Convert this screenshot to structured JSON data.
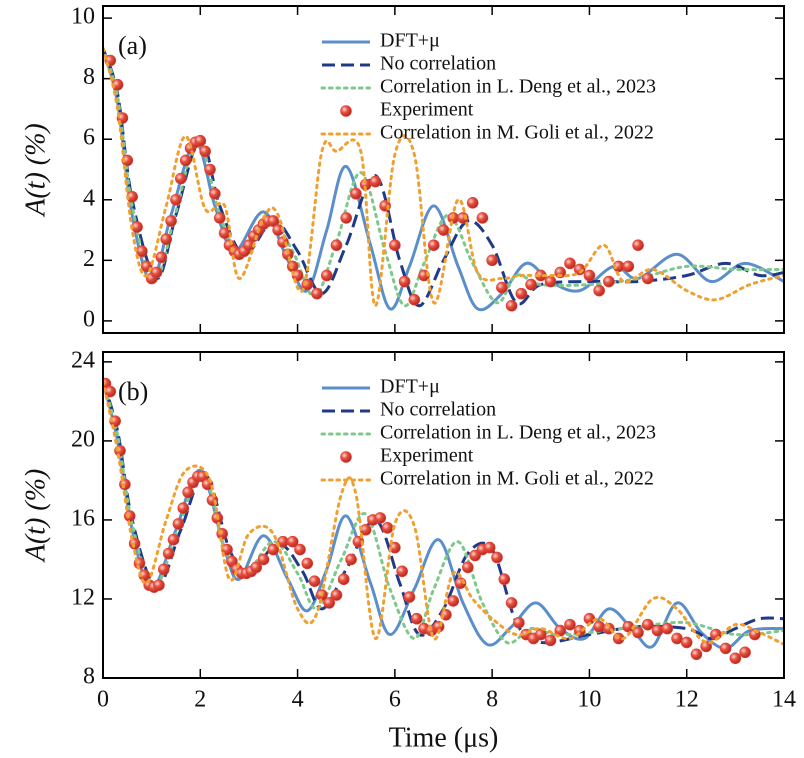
{
  "chart_data": [
    {
      "type": "line",
      "panel_label": "(a)",
      "y_label": "A(t) (%)",
      "xlim": [
        0,
        14
      ],
      "xticks": [
        0,
        2,
        4,
        6,
        8,
        10,
        12,
        14
      ],
      "show_xtick_labels": false,
      "ylim": [
        -0.4,
        10.4
      ],
      "yticks": [
        0,
        2,
        4,
        6,
        8,
        10
      ],
      "series": [
        {
          "name": "DFT+μ",
          "color": "#5b8fc9",
          "style": "solid",
          "x": [
            0,
            0.3,
            0.6,
            1.0,
            1.4,
            1.9,
            2.3,
            2.7,
            3.3,
            3.8,
            4.2,
            4.6,
            5.0,
            5.5,
            5.9,
            6.3,
            6.8,
            7.3,
            7.7,
            8.2,
            8.7,
            9.2,
            9.8,
            10.5,
            11.0,
            11.8,
            12.5,
            13.2,
            14
          ],
          "values": [
            9,
            7.2,
            3.5,
            1.3,
            3.5,
            5.9,
            3.8,
            2.3,
            3.6,
            2.0,
            1.0,
            3.0,
            5.1,
            2.5,
            0.4,
            1.8,
            3.8,
            1.8,
            0.4,
            0.9,
            1.9,
            1.3,
            1.0,
            1.8,
            1.4,
            2.2,
            1.3,
            1.9,
            1.3
          ]
        },
        {
          "name": "No correlation",
          "color": "#1f3a8a",
          "style": "dashed",
          "x": [
            0,
            0.3,
            0.6,
            1.1,
            1.5,
            2.0,
            2.4,
            2.9,
            3.5,
            4.0,
            4.5,
            5.0,
            5.6,
            6.1,
            6.5,
            7.0,
            7.5,
            8.0,
            8.5,
            9.0,
            10.0,
            11.0,
            12.0,
            12.8,
            13.5,
            14
          ],
          "values": [
            9,
            7.5,
            4.0,
            1.4,
            3.5,
            6.0,
            3.8,
            2.2,
            3.3,
            2.3,
            0.9,
            2.5,
            4.8,
            2.0,
            0.5,
            2.0,
            3.3,
            2.5,
            0.6,
            1.2,
            1.3,
            1.3,
            1.5,
            1.9,
            1.5,
            1.6
          ]
        },
        {
          "name": "Correlation in L. Deng et al., 2023",
          "color": "#7dc88a",
          "style": "dotted",
          "x": [
            0,
            0.3,
            0.6,
            1.05,
            1.5,
            1.95,
            2.4,
            2.8,
            3.4,
            3.9,
            4.35,
            4.8,
            5.3,
            5.8,
            6.2,
            6.6,
            7.1,
            7.6,
            8.1,
            8.5,
            9.0,
            10.0,
            11.0,
            12.0,
            13.0,
            14
          ],
          "values": [
            9,
            7.4,
            3.8,
            1.3,
            3.6,
            6.0,
            3.5,
            2.3,
            3.4,
            2.3,
            0.8,
            2.6,
            4.9,
            2.3,
            0.5,
            1.9,
            3.5,
            1.9,
            0.6,
            1.5,
            1.2,
            1.2,
            1.4,
            1.8,
            1.7,
            1.7
          ]
        },
        {
          "name": "Experiment",
          "color": "#e0443a",
          "style": "markers",
          "x": [
            0.15,
            0.3,
            0.4,
            0.5,
            0.6,
            0.7,
            0.8,
            0.9,
            1.0,
            1.1,
            1.2,
            1.3,
            1.4,
            1.5,
            1.6,
            1.7,
            1.8,
            1.9,
            2.0,
            2.1,
            2.2,
            2.3,
            2.4,
            2.5,
            2.6,
            2.7,
            2.8,
            2.9,
            3.0,
            3.1,
            3.2,
            3.3,
            3.4,
            3.5,
            3.6,
            3.7,
            3.8,
            3.9,
            4.0,
            4.2,
            4.4,
            4.6,
            4.8,
            5.0,
            5.2,
            5.4,
            5.6,
            5.8,
            6.0,
            6.2,
            6.4,
            6.6,
            6.8,
            7.0,
            7.2,
            7.4,
            7.6,
            7.8,
            8.0,
            8.2,
            8.4,
            8.6,
            8.8,
            9.0,
            9.2,
            9.4,
            9.6,
            9.8,
            10.0,
            10.2,
            10.4,
            10.6,
            10.8,
            11.0,
            11.2
          ],
          "values": [
            8.6,
            7.8,
            6.7,
            5.3,
            4.1,
            3.1,
            2.3,
            1.8,
            1.4,
            1.6,
            2.1,
            2.7,
            3.3,
            4.0,
            4.7,
            5.3,
            5.7,
            5.9,
            5.95,
            5.6,
            5.0,
            4.2,
            3.4,
            2.9,
            2.5,
            2.3,
            2.2,
            2.3,
            2.5,
            2.8,
            3.0,
            3.2,
            3.3,
            3.3,
            3.0,
            2.6,
            2.2,
            1.8,
            1.5,
            1.2,
            0.9,
            1.5,
            2.5,
            3.4,
            4.2,
            4.5,
            4.6,
            3.8,
            2.5,
            1.3,
            0.7,
            1.5,
            2.5,
            3.0,
            3.4,
            3.4,
            3.9,
            3.4,
            2.0,
            1.1,
            0.5,
            0.9,
            1.2,
            1.5,
            1.3,
            1.6,
            1.9,
            1.7,
            1.5,
            1.0,
            1.3,
            1.8,
            1.8,
            2.5,
            1.4
          ]
        },
        {
          "name": "Correlation in M. Goli et al., 2022",
          "color": "#f0a030",
          "style": "dotted",
          "x": [
            0,
            0.3,
            0.6,
            0.9,
            1.3,
            1.7,
            2.1,
            2.5,
            2.8,
            3.3,
            3.6,
            4.1,
            4.5,
            4.8,
            5.3,
            5.6,
            6.0,
            6.4,
            6.8,
            7.3,
            7.7,
            8.2,
            8.6,
            9.2,
            9.8,
            10.3,
            10.7,
            11.3,
            12.0,
            12.6,
            13.3,
            14
          ],
          "values": [
            9,
            7.0,
            3.0,
            1.5,
            3.8,
            6.1,
            3.7,
            3.8,
            1.4,
            3.4,
            3.5,
            1.0,
            5.6,
            5.6,
            5.6,
            0.5,
            5.5,
            5.5,
            0.6,
            4.0,
            1.6,
            1.4,
            1.5,
            1.5,
            1.6,
            2.5,
            1.3,
            1.7,
            1.0,
            0.7,
            1.2,
            1.5
          ]
        }
      ]
    },
    {
      "type": "line",
      "panel_label": "(b)",
      "y_label": "A(t) (%)",
      "x_label": "Time (μs)",
      "xlim": [
        0,
        14
      ],
      "xticks": [
        0,
        2,
        4,
        6,
        8,
        10,
        12,
        14
      ],
      "show_xtick_labels": true,
      "ylim": [
        8,
        24.5
      ],
      "yticks": [
        8,
        12,
        16,
        20,
        24
      ],
      "series": [
        {
          "name": "DFT+μ",
          "color": "#5b8fc9",
          "style": "solid",
          "x": [
            0,
            0.3,
            0.6,
            1.0,
            1.5,
            2.0,
            2.5,
            2.8,
            3.3,
            3.8,
            4.2,
            4.6,
            5.0,
            5.5,
            5.9,
            6.4,
            6.9,
            7.4,
            7.9,
            8.4,
            8.9,
            9.4,
            9.9,
            10.4,
            10.9,
            11.3,
            11.8,
            12.3,
            12.8,
            13.3,
            14
          ],
          "values": [
            23,
            20,
            15.5,
            12.5,
            15.5,
            18.5,
            14.5,
            13.0,
            15.2,
            13.0,
            11.4,
            13.5,
            16.2,
            12.8,
            10.2,
            12.5,
            15.0,
            11.8,
            9.7,
            10.6,
            11.8,
            10.5,
            10.0,
            11.5,
            10.4,
            9.6,
            11.8,
            10.3,
            9.5,
            10.4,
            10.5
          ]
        },
        {
          "name": "No correlation",
          "color": "#1f3a8a",
          "style": "dashed",
          "x": [
            0,
            0.3,
            0.6,
            1.1,
            1.6,
            2.1,
            2.6,
            3.0,
            3.6,
            4.1,
            4.5,
            5.0,
            5.6,
            6.1,
            6.5,
            7.0,
            7.5,
            8.0,
            8.5,
            9.0,
            10.0,
            11.0,
            12.0,
            12.5,
            13.0,
            13.5,
            14
          ],
          "values": [
            23,
            20.5,
            16,
            12.6,
            15.5,
            18.3,
            14.5,
            13.3,
            14.8,
            13.4,
            11.5,
            13.5,
            16.0,
            12.8,
            10.2,
            11.5,
            14.3,
            14.5,
            10.8,
            9.8,
            10.2,
            10.6,
            10.5,
            10.0,
            10.5,
            11.0,
            11.0
          ]
        },
        {
          "name": "Correlation in L. Deng et al., 2023",
          "color": "#7dc88a",
          "style": "dotted",
          "x": [
            0,
            0.3,
            0.6,
            1.05,
            1.55,
            2.05,
            2.5,
            2.9,
            3.5,
            4.0,
            4.4,
            4.9,
            5.4,
            5.9,
            6.4,
            6.8,
            7.3,
            7.8,
            8.3,
            8.8,
            9.3,
            10.0,
            11.0,
            12.0,
            13.0,
            14
          ],
          "values": [
            23,
            20.3,
            15.8,
            12.6,
            15.6,
            18.4,
            14.6,
            13.2,
            14.9,
            13.3,
            11.5,
            14.0,
            16.3,
            12.5,
            10.0,
            12.5,
            14.9,
            11.8,
            9.8,
            10.5,
            10.2,
            10.3,
            10.6,
            10.8,
            10.2,
            10.4
          ]
        },
        {
          "name": "Experiment",
          "color": "#e0443a",
          "style": "markers",
          "x": [
            0.05,
            0.15,
            0.25,
            0.35,
            0.45,
            0.55,
            0.65,
            0.75,
            0.85,
            0.95,
            1.05,
            1.15,
            1.25,
            1.35,
            1.45,
            1.55,
            1.65,
            1.75,
            1.85,
            1.95,
            2.05,
            2.15,
            2.25,
            2.35,
            2.45,
            2.55,
            2.65,
            2.75,
            2.85,
            2.95,
            3.05,
            3.15,
            3.3,
            3.5,
            3.7,
            3.9,
            4.05,
            4.2,
            4.35,
            4.5,
            4.65,
            4.8,
            4.95,
            5.1,
            5.25,
            5.4,
            5.55,
            5.7,
            5.85,
            6.0,
            6.15,
            6.3,
            6.45,
            6.6,
            6.75,
            6.9,
            7.05,
            7.2,
            7.35,
            7.5,
            7.65,
            7.8,
            7.95,
            8.1,
            8.25,
            8.4,
            8.55,
            8.7,
            8.85,
            9.0,
            9.2,
            9.4,
            9.6,
            9.8,
            10.0,
            10.2,
            10.4,
            10.6,
            10.8,
            11.0,
            11.2,
            11.4,
            11.6,
            11.8,
            12.0,
            12.2,
            12.4,
            12.6,
            12.8,
            13.0,
            13.2,
            13.4
          ],
          "values": [
            22.9,
            22.5,
            21.0,
            19.5,
            17.8,
            16.2,
            14.8,
            13.8,
            13.2,
            12.7,
            12.6,
            12.7,
            13.5,
            14.3,
            15.0,
            15.8,
            16.6,
            17.4,
            17.9,
            18.2,
            18.2,
            17.8,
            17.0,
            16.1,
            15.3,
            14.5,
            13.9,
            13.5,
            13.3,
            13.3,
            13.4,
            13.6,
            14.0,
            14.5,
            14.9,
            14.9,
            14.5,
            13.8,
            12.9,
            12.2,
            11.8,
            12.2,
            13.0,
            14.0,
            14.9,
            15.5,
            16.0,
            16.1,
            15.6,
            14.6,
            13.4,
            12.1,
            11.0,
            10.5,
            10.4,
            10.6,
            11.2,
            11.9,
            12.8,
            13.6,
            14.2,
            14.5,
            14.6,
            14.1,
            13.0,
            11.8,
            10.8,
            10.2,
            10.0,
            10.2,
            9.9,
            10.4,
            10.7,
            10.4,
            11.0,
            10.6,
            10.5,
            10.0,
            10.6,
            10.3,
            10.7,
            10.4,
            10.5,
            10.0,
            9.8,
            9.2,
            9.6,
            10.2,
            9.5,
            9.0,
            9.3,
            10.2
          ]
        },
        {
          "name": "Correlation in M. Goli et al., 2022",
          "color": "#f0a030",
          "style": "dotted",
          "x": [
            0,
            0.3,
            0.6,
            0.9,
            1.3,
            1.7,
            2.2,
            2.6,
            3.0,
            3.5,
            4.0,
            4.4,
            4.9,
            5.2,
            5.6,
            6.0,
            6.4,
            6.8,
            7.2,
            7.6,
            8.0,
            8.5,
            9.0,
            9.6,
            10.2,
            10.7,
            11.3,
            11.8,
            12.4,
            13.0,
            13.5,
            14
          ],
          "values": [
            23,
            19.5,
            15,
            12.8,
            16.0,
            18.5,
            18.0,
            13.0,
            15.3,
            15.3,
            11.5,
            11.3,
            17.3,
            17.3,
            10.0,
            15.8,
            15.7,
            10.0,
            13.3,
            12.0,
            11.0,
            10.2,
            10.5,
            10.0,
            11.0,
            10.0,
            12.0,
            11.5,
            9.8,
            10.7,
            10.3,
            9.7
          ]
        }
      ]
    }
  ]
}
